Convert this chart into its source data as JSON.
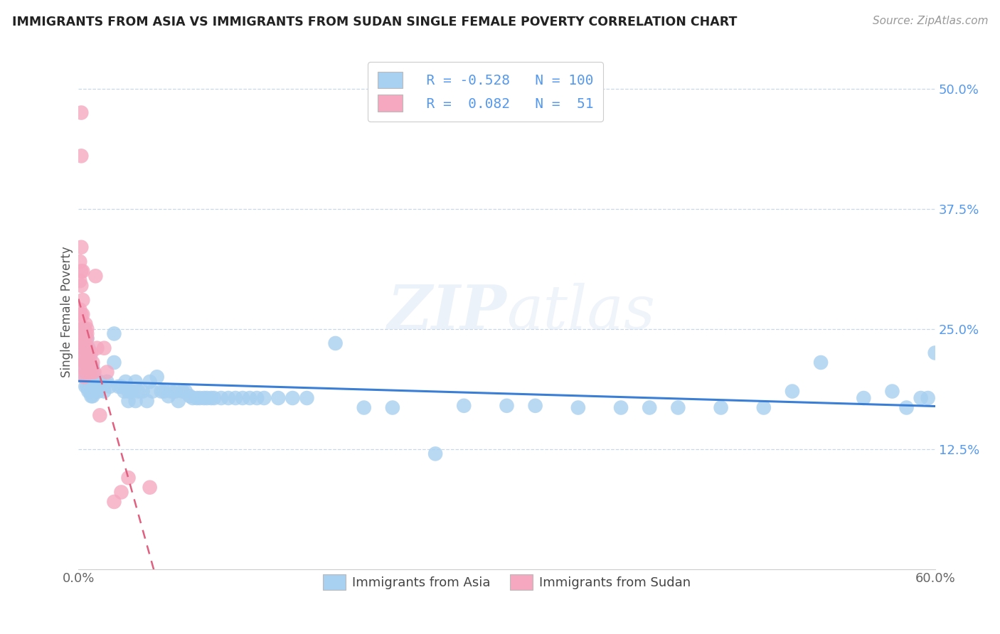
{
  "title": "IMMIGRANTS FROM ASIA VS IMMIGRANTS FROM SUDAN SINGLE FEMALE POVERTY CORRELATION CHART",
  "source": "Source: ZipAtlas.com",
  "ylabel": "Single Female Poverty",
  "xlim": [
    0.0,
    0.6
  ],
  "ylim": [
    0.0,
    0.535
  ],
  "xticks": [
    0.0,
    0.1,
    0.2,
    0.3,
    0.4,
    0.5,
    0.6
  ],
  "xtick_labels": [
    "0.0%",
    "",
    "",
    "",
    "",
    "",
    "60.0%"
  ],
  "ytick_labels": [
    "12.5%",
    "25.0%",
    "37.5%",
    "50.0%"
  ],
  "yticks": [
    0.125,
    0.25,
    0.375,
    0.5
  ],
  "legend_labels": [
    "Immigrants from Asia",
    "Immigrants from Sudan"
  ],
  "r_asia": -0.528,
  "n_asia": 100,
  "r_sudan": 0.082,
  "n_sudan": 51,
  "color_asia": "#a8d0f0",
  "color_sudan": "#f5a8c0",
  "trendline_asia_color": "#3a7fd5",
  "trendline_sudan_color": "#e06080",
  "watermark_zip": "ZIP",
  "watermark_atlas": "atlas",
  "background_color": "#ffffff",
  "asia_x": [
    0.003,
    0.004,
    0.004,
    0.004,
    0.005,
    0.005,
    0.005,
    0.005,
    0.005,
    0.006,
    0.006,
    0.006,
    0.006,
    0.006,
    0.007,
    0.007,
    0.007,
    0.007,
    0.008,
    0.008,
    0.008,
    0.009,
    0.009,
    0.009,
    0.01,
    0.01,
    0.01,
    0.011,
    0.012,
    0.013,
    0.014,
    0.015,
    0.016,
    0.018,
    0.02,
    0.022,
    0.025,
    0.025,
    0.028,
    0.03,
    0.032,
    0.033,
    0.035,
    0.035,
    0.037,
    0.04,
    0.04,
    0.042,
    0.045,
    0.048,
    0.05,
    0.052,
    0.055,
    0.058,
    0.06,
    0.063,
    0.065,
    0.068,
    0.07,
    0.073,
    0.075,
    0.078,
    0.08,
    0.083,
    0.085,
    0.088,
    0.09,
    0.093,
    0.095,
    0.1,
    0.105,
    0.11,
    0.115,
    0.12,
    0.125,
    0.13,
    0.14,
    0.15,
    0.16,
    0.18,
    0.2,
    0.22,
    0.25,
    0.27,
    0.3,
    0.32,
    0.35,
    0.38,
    0.4,
    0.42,
    0.45,
    0.48,
    0.5,
    0.52,
    0.55,
    0.57,
    0.58,
    0.59,
    0.595,
    0.6
  ],
  "asia_y": [
    0.22,
    0.25,
    0.23,
    0.21,
    0.24,
    0.23,
    0.215,
    0.2,
    0.19,
    0.24,
    0.225,
    0.21,
    0.2,
    0.19,
    0.23,
    0.215,
    0.2,
    0.185,
    0.22,
    0.2,
    0.185,
    0.21,
    0.195,
    0.18,
    0.21,
    0.195,
    0.18,
    0.2,
    0.195,
    0.19,
    0.185,
    0.195,
    0.19,
    0.185,
    0.195,
    0.19,
    0.245,
    0.215,
    0.19,
    0.19,
    0.185,
    0.195,
    0.185,
    0.175,
    0.185,
    0.195,
    0.175,
    0.185,
    0.185,
    0.175,
    0.195,
    0.185,
    0.2,
    0.185,
    0.185,
    0.18,
    0.185,
    0.185,
    0.175,
    0.185,
    0.185,
    0.18,
    0.178,
    0.178,
    0.178,
    0.178,
    0.178,
    0.178,
    0.178,
    0.178,
    0.178,
    0.178,
    0.178,
    0.178,
    0.178,
    0.178,
    0.178,
    0.178,
    0.178,
    0.235,
    0.168,
    0.168,
    0.12,
    0.17,
    0.17,
    0.17,
    0.168,
    0.168,
    0.168,
    0.168,
    0.168,
    0.168,
    0.185,
    0.215,
    0.178,
    0.185,
    0.168,
    0.178,
    0.178,
    0.225
  ],
  "sudan_x": [
    0.001,
    0.001,
    0.001,
    0.001,
    0.002,
    0.002,
    0.002,
    0.002,
    0.002,
    0.002,
    0.003,
    0.003,
    0.003,
    0.003,
    0.003,
    0.003,
    0.004,
    0.004,
    0.004,
    0.004,
    0.004,
    0.004,
    0.004,
    0.005,
    0.005,
    0.005,
    0.005,
    0.005,
    0.005,
    0.006,
    0.006,
    0.006,
    0.006,
    0.007,
    0.007,
    0.007,
    0.008,
    0.008,
    0.009,
    0.01,
    0.01,
    0.011,
    0.012,
    0.013,
    0.015,
    0.018,
    0.02,
    0.025,
    0.03,
    0.035,
    0.05
  ],
  "sudan_y": [
    0.32,
    0.3,
    0.27,
    0.26,
    0.475,
    0.43,
    0.335,
    0.31,
    0.295,
    0.265,
    0.31,
    0.28,
    0.265,
    0.25,
    0.24,
    0.235,
    0.25,
    0.24,
    0.23,
    0.22,
    0.215,
    0.21,
    0.2,
    0.255,
    0.245,
    0.235,
    0.225,
    0.215,
    0.205,
    0.25,
    0.245,
    0.24,
    0.23,
    0.225,
    0.225,
    0.215,
    0.215,
    0.205,
    0.225,
    0.215,
    0.205,
    0.205,
    0.305,
    0.23,
    0.16,
    0.23,
    0.205,
    0.07,
    0.08,
    0.095,
    0.085
  ]
}
